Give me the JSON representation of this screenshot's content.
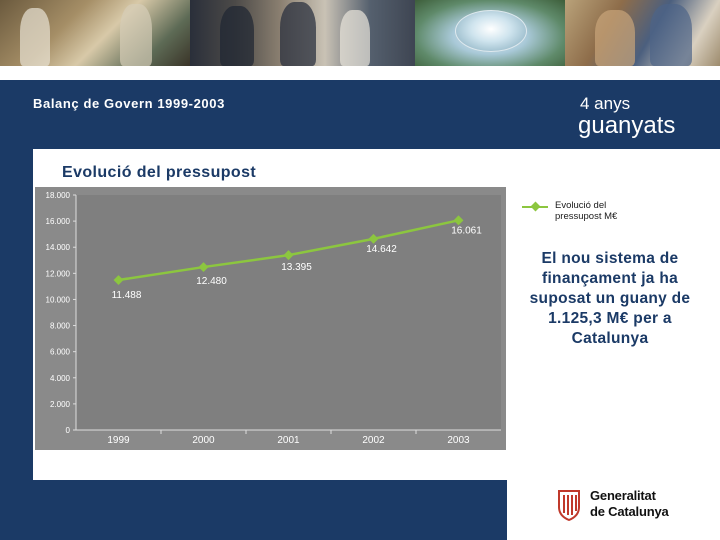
{
  "header": {
    "subtitle": "Balanç de Govern 1999-2003",
    "years": "4 anys",
    "tagline": "guanyats"
  },
  "statement": "El nou sistema de finançament ja ha suposat un guany de 1.125,3 M€ per a Catalunya",
  "logo": {
    "line1": "Generalitat",
    "line2": "de Catalunya"
  },
  "colors": {
    "navy": "#1b3a66",
    "series": "#8cc63f",
    "panel": "#8a8a8a",
    "plot": "#7f7f7f"
  },
  "chart_data": {
    "type": "line",
    "title": "Evolució del pressupost",
    "categories": [
      "1999",
      "2000",
      "2001",
      "2002",
      "2003"
    ],
    "series": [
      {
        "name": "Evolució del pressupost M€",
        "values": [
          11488,
          12480,
          13395,
          14642,
          16061
        ],
        "labels": [
          "11.488",
          "12.480",
          "13.395",
          "14.642",
          "16.061"
        ]
      }
    ],
    "yticks": [
      0,
      2000,
      4000,
      6000,
      8000,
      10000,
      12000,
      14000,
      16000,
      18000
    ],
    "ytick_labels": [
      "0",
      "2.000",
      "4.000",
      "6.000",
      "8.000",
      "10.000",
      "12.000",
      "14.000",
      "16.000",
      "18.000"
    ],
    "ylim": [
      0,
      18000
    ],
    "legend": "right"
  }
}
